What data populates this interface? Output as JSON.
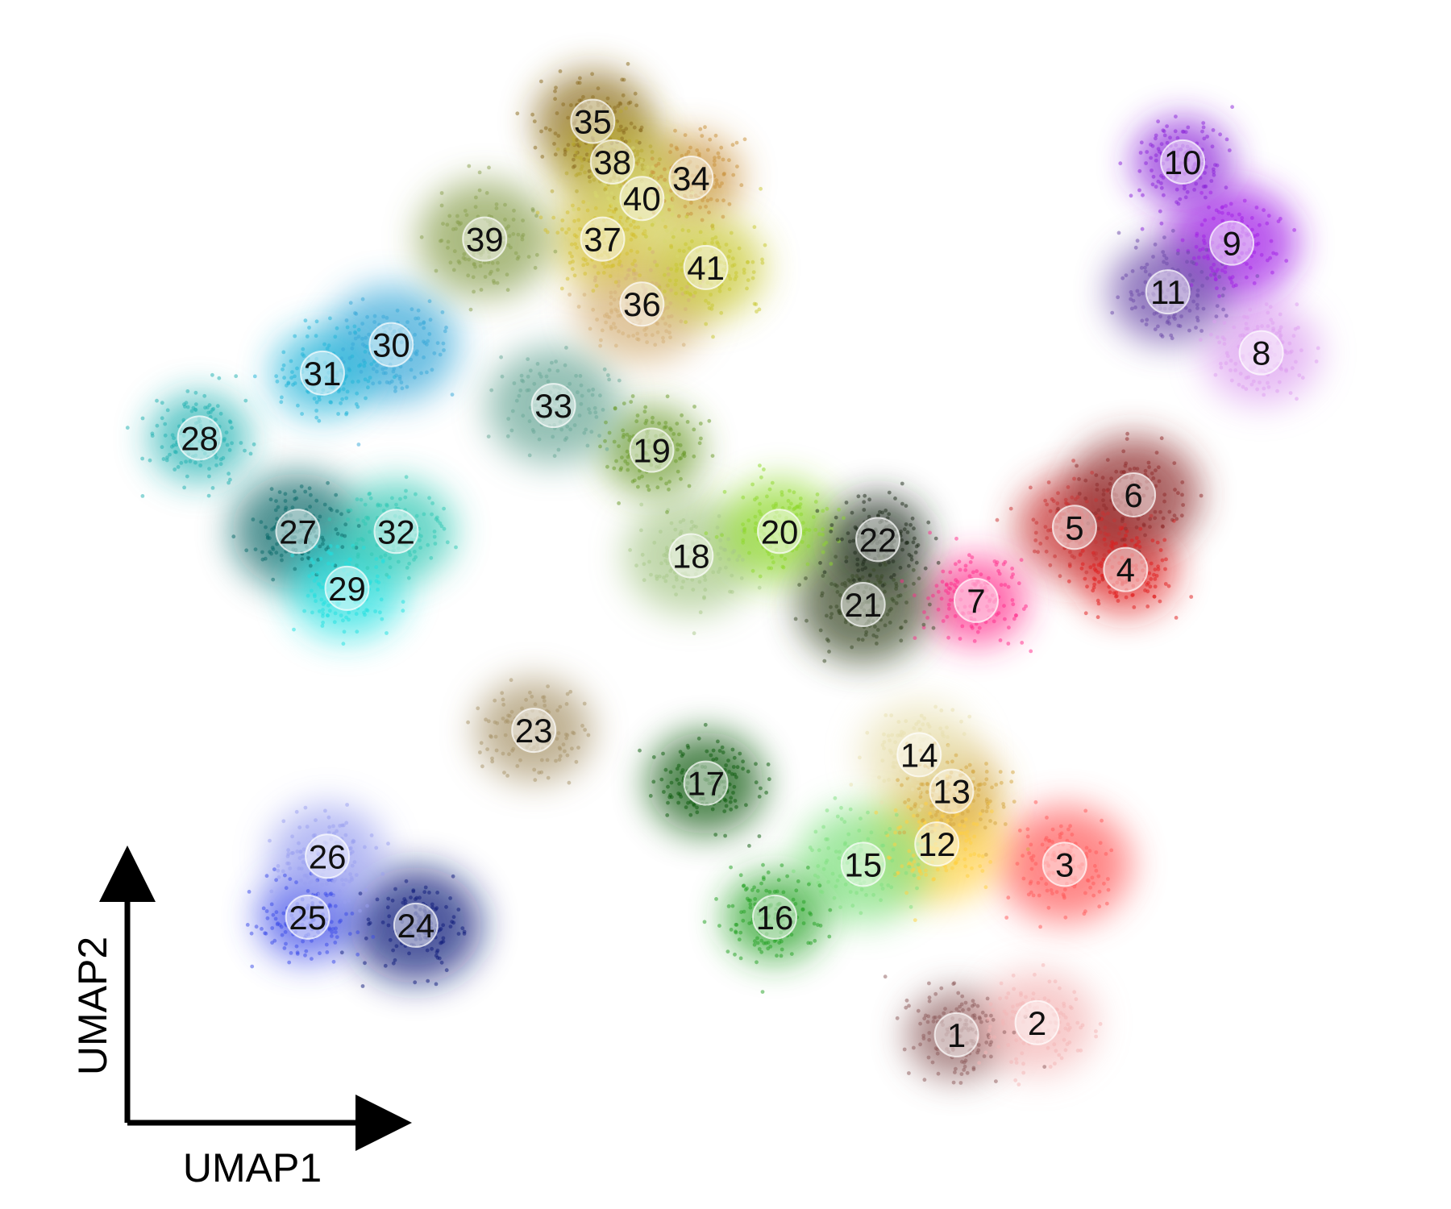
{
  "chart_data": {
    "type": "scatter",
    "title": "",
    "xlabel": "UMAP1",
    "ylabel": "UMAP2",
    "axes": {
      "ticks": "none",
      "style": "corner arrows at bottom-left"
    },
    "grid": false,
    "legend": "none (cluster numbers drawn on plot)",
    "clusters": [
      {
        "label": "1",
        "x": 1.5,
        "y": -4.55,
        "color": "#8B5A5A"
      },
      {
        "label": "2",
        "x": 2.32,
        "y": -4.4,
        "color": "#F4B6B6"
      },
      {
        "label": "3",
        "x": 2.6,
        "y": -2.45,
        "color": "#FF5A5A"
      },
      {
        "label": "4",
        "x": 3.22,
        "y": 1.18,
        "color": "#E01A1A"
      },
      {
        "label": "5",
        "x": 2.7,
        "y": 1.7,
        "color": "#C83232"
      },
      {
        "label": "6",
        "x": 3.3,
        "y": 2.1,
        "color": "#8E2A2A"
      },
      {
        "label": "7",
        "x": 1.7,
        "y": 0.8,
        "color": "#FF2A8A"
      },
      {
        "label": "8",
        "x": 4.6,
        "y": 3.85,
        "color": "#DDA0F0"
      },
      {
        "label": "9",
        "x": 4.3,
        "y": 5.2,
        "color": "#A11DE6"
      },
      {
        "label": "10",
        "x": 3.8,
        "y": 6.2,
        "color": "#8A22D8"
      },
      {
        "label": "11",
        "x": 3.65,
        "y": 4.6,
        "color": "#6B4AA8"
      },
      {
        "label": "12",
        "x": 1.3,
        "y": -2.2,
        "color": "#FFD040"
      },
      {
        "label": "13",
        "x": 1.45,
        "y": -1.55,
        "color": "#D4A640"
      },
      {
        "label": "14",
        "x": 1.12,
        "y": -1.1,
        "color": "#E8E0B0"
      },
      {
        "label": "15",
        "x": 0.55,
        "y": -2.45,
        "color": "#7FE07F"
      },
      {
        "label": "16",
        "x": -0.35,
        "y": -3.1,
        "color": "#22A022"
      },
      {
        "label": "17",
        "x": -1.05,
        "y": -1.45,
        "color": "#0A5A0A"
      },
      {
        "label": "18",
        "x": -1.2,
        "y": 1.35,
        "color": "#A8C88A"
      },
      {
        "label": "19",
        "x": -1.6,
        "y": 2.65,
        "color": "#6A9A2A"
      },
      {
        "label": "20",
        "x": -0.3,
        "y": 1.65,
        "color": "#8ED82A"
      },
      {
        "label": "21",
        "x": 0.55,
        "y": 0.75,
        "color": "#3A4A28"
      },
      {
        "label": "22",
        "x": 0.7,
        "y": 1.55,
        "color": "#1E2A1A"
      },
      {
        "label": "23",
        "x": -2.8,
        "y": -0.8,
        "color": "#A8946A"
      },
      {
        "label": "24",
        "x": -4.0,
        "y": -3.2,
        "color": "#0E1A7A"
      },
      {
        "label": "25",
        "x": -5.1,
        "y": -3.1,
        "color": "#3A4AE8"
      },
      {
        "label": "26",
        "x": -4.9,
        "y": -2.35,
        "color": "#9AA0F0"
      },
      {
        "label": "27",
        "x": -5.2,
        "y": 1.65,
        "color": "#0A6A6A"
      },
      {
        "label": "28",
        "x": -6.2,
        "y": 2.8,
        "color": "#1FB0B0"
      },
      {
        "label": "29",
        "x": -4.7,
        "y": 0.95,
        "color": "#20E0E0"
      },
      {
        "label": "30",
        "x": -4.25,
        "y": 3.95,
        "color": "#38A8D8"
      },
      {
        "label": "31",
        "x": -4.95,
        "y": 3.6,
        "color": "#20B4D8"
      },
      {
        "label": "32",
        "x": -4.2,
        "y": 1.65,
        "color": "#30C8B4"
      },
      {
        "label": "33",
        "x": -2.6,
        "y": 3.2,
        "color": "#6AA898"
      },
      {
        "label": "34",
        "x": -1.2,
        "y": 6.0,
        "color": "#C89038"
      },
      {
        "label": "35",
        "x": -2.2,
        "y": 6.7,
        "color": "#8A6A1E"
      },
      {
        "label": "36",
        "x": -1.7,
        "y": 4.45,
        "color": "#D4B078"
      },
      {
        "label": "37",
        "x": -2.1,
        "y": 5.25,
        "color": "#D4C030"
      },
      {
        "label": "38",
        "x": -2.0,
        "y": 6.2,
        "color": "#B8A830"
      },
      {
        "label": "39",
        "x": -3.3,
        "y": 5.25,
        "color": "#8AA050"
      },
      {
        "label": "40",
        "x": -1.7,
        "y": 5.75,
        "color": "#D8D870"
      },
      {
        "label": "41",
        "x": -1.05,
        "y": 4.9,
        "color": "#C8C830"
      }
    ],
    "xlim": [
      -7.0,
      5.3
    ],
    "ylim": [
      -6.0,
      7.4
    ]
  }
}
